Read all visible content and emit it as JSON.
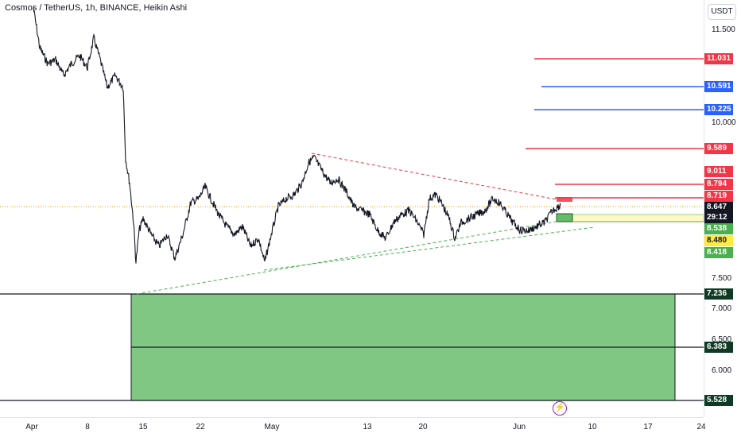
{
  "header": {
    "symbol_title": "Cosmos / TetherUS, 1h, BINANCE, Heikin Ashi",
    "currency_button": "USDT"
  },
  "price_axis": {
    "ticks": [
      "11.500",
      "10.000",
      "7.500",
      "7.000",
      "6.500",
      "6.000"
    ]
  },
  "time_axis": {
    "ticks": [
      "Apr",
      "8",
      "15",
      "22",
      "May",
      "13",
      "20",
      "Jun",
      "10",
      "17",
      "24"
    ]
  },
  "price_badges": [
    {
      "label": "11.031",
      "style": "red"
    },
    {
      "label": "10.591",
      "style": "blue"
    },
    {
      "label": "10.225",
      "style": "blue"
    },
    {
      "label": "9.589",
      "style": "red"
    },
    {
      "label": "9.011",
      "style": "red"
    },
    {
      "label": "8.794",
      "style": "red"
    },
    {
      "label": "8.719",
      "style": "red"
    },
    {
      "label": "8.647",
      "style": "dark"
    },
    {
      "label": "29:12",
      "style": "dark"
    },
    {
      "label": "8.538",
      "style": "green"
    },
    {
      "label": "8.480",
      "style": "yellow"
    },
    {
      "label": "8.418",
      "style": "green"
    },
    {
      "label": "7.236",
      "style": "darkgreen"
    },
    {
      "label": "6.383",
      "style": "darkgreen"
    },
    {
      "label": "5.528",
      "style": "darkgreen"
    }
  ],
  "icons": {
    "replay": "lightning-icon"
  },
  "colors": {
    "red_level": "#f23645",
    "blue_level": "#2962ff",
    "demand_zone": "#81c784",
    "price_line": "#131722",
    "resistance_trend": "#f23645",
    "support_trend": "#4caf50",
    "last_price_line": "#ff9800"
  }
}
